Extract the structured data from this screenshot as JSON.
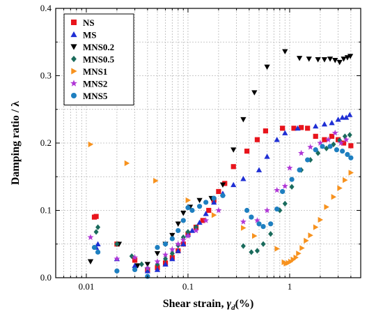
{
  "chart_data": {
    "type": "scatter",
    "xlabel": "Shear strain, γd (%)",
    "xlabel_main": "Shear strain,",
    "xlabel_sym": "γ",
    "xlabel_sub": "d",
    "xlabel_unit": "(%)",
    "ylabel": "Damping ratio / λ",
    "x_scale": "log",
    "xlim": [
      0.005,
      5
    ],
    "ylim": [
      0,
      0.4
    ],
    "x_ticks": [
      0.01,
      0.1,
      1
    ],
    "x_tick_labels": [
      "0.01",
      "0.1",
      "1"
    ],
    "y_ticks": [
      0,
      0.1,
      0.2,
      0.3,
      0.4
    ],
    "y_tick_labels": [
      "0.0",
      "0.1",
      "0.2",
      "0.3",
      "0.4"
    ],
    "grid": true,
    "legend_position": "top-left",
    "series": [
      {
        "name": "NS",
        "color": "#e8141c",
        "marker": "square",
        "points": [
          [
            0.012,
            0.09
          ],
          [
            0.0125,
            0.091
          ],
          [
            0.02,
            0.05
          ],
          [
            0.03,
            0.026
          ],
          [
            0.04,
            0.012
          ],
          [
            0.05,
            0.015
          ],
          [
            0.06,
            0.022
          ],
          [
            0.07,
            0.03
          ],
          [
            0.08,
            0.04
          ],
          [
            0.09,
            0.05
          ],
          [
            0.1,
            0.065
          ],
          [
            0.12,
            0.075
          ],
          [
            0.14,
            0.085
          ],
          [
            0.16,
            0.1
          ],
          [
            0.18,
            0.115
          ],
          [
            0.2,
            0.128
          ],
          [
            0.23,
            0.14
          ],
          [
            0.28,
            0.165
          ],
          [
            0.38,
            0.188
          ],
          [
            0.48,
            0.205
          ],
          [
            0.58,
            0.218
          ],
          [
            0.85,
            0.222
          ],
          [
            1.1,
            0.222
          ],
          [
            1.3,
            0.223
          ],
          [
            1.5,
            0.222
          ],
          [
            1.8,
            0.21
          ],
          [
            2.2,
            0.205
          ],
          [
            2.6,
            0.21
          ],
          [
            3.0,
            0.205
          ],
          [
            3.4,
            0.2
          ],
          [
            4.0,
            0.196
          ]
        ]
      },
      {
        "name": "MS",
        "color": "#1f2fd4",
        "marker": "triangle",
        "points": [
          [
            0.0125,
            0.045
          ],
          [
            0.013,
            0.05
          ],
          [
            0.02,
            0.028
          ],
          [
            0.03,
            0.018
          ],
          [
            0.04,
            0.01
          ],
          [
            0.05,
            0.012
          ],
          [
            0.06,
            0.02
          ],
          [
            0.07,
            0.028
          ],
          [
            0.08,
            0.04
          ],
          [
            0.09,
            0.05
          ],
          [
            0.1,
            0.064
          ],
          [
            0.11,
            0.07
          ],
          [
            0.13,
            0.082
          ],
          [
            0.15,
            0.095
          ],
          [
            0.18,
            0.112
          ],
          [
            0.22,
            0.125
          ],
          [
            0.28,
            0.138
          ],
          [
            0.35,
            0.147
          ],
          [
            0.5,
            0.16
          ],
          [
            0.6,
            0.18
          ],
          [
            0.75,
            0.205
          ],
          [
            0.9,
            0.215
          ],
          [
            1.2,
            0.222
          ],
          [
            1.8,
            0.225
          ],
          [
            2.2,
            0.228
          ],
          [
            2.6,
            0.23
          ],
          [
            3.0,
            0.235
          ],
          [
            3.3,
            0.238
          ],
          [
            3.6,
            0.238
          ],
          [
            3.9,
            0.242
          ]
        ]
      },
      {
        "name": "MNS0.2",
        "color": "#000000",
        "marker": "triangle-down",
        "points": [
          [
            0.011,
            0.024
          ],
          [
            0.021,
            0.05
          ],
          [
            0.032,
            0.018
          ],
          [
            0.04,
            0.02
          ],
          [
            0.05,
            0.036
          ],
          [
            0.06,
            0.05
          ],
          [
            0.07,
            0.063
          ],
          [
            0.08,
            0.08
          ],
          [
            0.09,
            0.096
          ],
          [
            0.105,
            0.105
          ],
          [
            0.13,
            0.115
          ],
          [
            0.17,
            0.118
          ],
          [
            0.22,
            0.138
          ],
          [
            0.28,
            0.19
          ],
          [
            0.35,
            0.235
          ],
          [
            0.45,
            0.275
          ],
          [
            0.6,
            0.313
          ],
          [
            0.9,
            0.336
          ],
          [
            1.25,
            0.326
          ],
          [
            1.55,
            0.325
          ],
          [
            1.9,
            0.324
          ],
          [
            2.2,
            0.324
          ],
          [
            2.5,
            0.325
          ],
          [
            2.8,
            0.323
          ],
          [
            3.1,
            0.32
          ],
          [
            3.4,
            0.325
          ],
          [
            3.7,
            0.327
          ],
          [
            3.95,
            0.329
          ]
        ]
      },
      {
        "name": "MNS0.5",
        "color": "#1a6b5c",
        "marker": "diamond",
        "points": [
          [
            0.0125,
            0.068
          ],
          [
            0.013,
            0.075
          ],
          [
            0.02,
            0.05
          ],
          [
            0.028,
            0.032
          ],
          [
            0.035,
            0.02
          ],
          [
            0.04,
            0.014
          ],
          [
            0.05,
            0.02
          ],
          [
            0.06,
            0.028
          ],
          [
            0.07,
            0.036
          ],
          [
            0.08,
            0.048
          ],
          [
            0.09,
            0.06
          ],
          [
            0.1,
            0.068
          ],
          [
            0.12,
            0.075
          ],
          [
            0.35,
            0.047
          ],
          [
            0.42,
            0.038
          ],
          [
            0.48,
            0.04
          ],
          [
            0.55,
            0.05
          ],
          [
            0.65,
            0.065
          ],
          [
            0.8,
            0.1
          ],
          [
            0.9,
            0.11
          ],
          [
            1.05,
            0.135
          ],
          [
            1.3,
            0.16
          ],
          [
            1.6,
            0.175
          ],
          [
            1.9,
            0.185
          ],
          [
            2.3,
            0.192
          ],
          [
            2.7,
            0.198
          ],
          [
            3.1,
            0.204
          ],
          [
            3.5,
            0.21
          ],
          [
            3.9,
            0.212
          ]
        ]
      },
      {
        "name": "MNS1",
        "color": "#f7921e",
        "marker": "triangle-right",
        "points": [
          [
            0.011,
            0.198
          ],
          [
            0.025,
            0.17
          ],
          [
            0.048,
            0.144
          ],
          [
            0.1,
            0.115
          ],
          [
            0.18,
            0.093
          ],
          [
            0.35,
            0.074
          ],
          [
            0.45,
            0.062
          ],
          [
            0.75,
            0.043
          ],
          [
            0.88,
            0.023
          ],
          [
            0.92,
            0.021
          ],
          [
            0.97,
            0.022
          ],
          [
            1.02,
            0.024
          ],
          [
            1.08,
            0.027
          ],
          [
            1.15,
            0.03
          ],
          [
            1.22,
            0.036
          ],
          [
            1.32,
            0.044
          ],
          [
            1.45,
            0.055
          ],
          [
            1.6,
            0.063
          ],
          [
            1.8,
            0.075
          ],
          [
            2.0,
            0.086
          ],
          [
            2.3,
            0.105
          ],
          [
            2.7,
            0.12
          ],
          [
            3.1,
            0.133
          ],
          [
            3.5,
            0.145
          ],
          [
            4.0,
            0.156
          ]
        ]
      },
      {
        "name": "MNS2",
        "color": "#b036d6",
        "marker": "star",
        "points": [
          [
            0.011,
            0.06
          ],
          [
            0.02,
            0.028
          ],
          [
            0.03,
            0.03
          ],
          [
            0.04,
            0.014
          ],
          [
            0.05,
            0.024
          ],
          [
            0.06,
            0.034
          ],
          [
            0.07,
            0.042
          ],
          [
            0.08,
            0.05
          ],
          [
            0.09,
            0.056
          ],
          [
            0.1,
            0.062
          ],
          [
            0.12,
            0.07
          ],
          [
            0.15,
            0.085
          ],
          [
            0.2,
            0.1
          ],
          [
            0.35,
            0.083
          ],
          [
            0.48,
            0.085
          ],
          [
            0.6,
            0.1
          ],
          [
            0.75,
            0.13
          ],
          [
            0.9,
            0.136
          ],
          [
            1.0,
            0.163
          ],
          [
            1.3,
            0.185
          ],
          [
            1.6,
            0.194
          ],
          [
            2.0,
            0.2
          ],
          [
            2.4,
            0.205
          ],
          [
            2.8,
            0.215
          ],
          [
            3.2,
            0.2
          ],
          [
            3.6,
            0.205
          ]
        ]
      },
      {
        "name": "MNS5",
        "color": "#1e7fc0",
        "marker": "circle",
        "points": [
          [
            0.012,
            0.045
          ],
          [
            0.013,
            0.038
          ],
          [
            0.02,
            0.01
          ],
          [
            0.03,
            0.012
          ],
          [
            0.04,
            0.002
          ],
          [
            0.05,
            0.045
          ],
          [
            0.06,
            0.05
          ],
          [
            0.07,
            0.058
          ],
          [
            0.08,
            0.07
          ],
          [
            0.09,
            0.085
          ],
          [
            0.1,
            0.104
          ],
          [
            0.11,
            0.1
          ],
          [
            0.13,
            0.106
          ],
          [
            0.15,
            0.112
          ],
          [
            0.18,
            0.118
          ],
          [
            0.22,
            0.122
          ],
          [
            0.38,
            0.1
          ],
          [
            0.42,
            0.09
          ],
          [
            0.5,
            0.08
          ],
          [
            0.55,
            0.076
          ],
          [
            0.65,
            0.08
          ],
          [
            0.75,
            0.102
          ],
          [
            0.85,
            0.128
          ],
          [
            1.05,
            0.146
          ],
          [
            1.25,
            0.16
          ],
          [
            1.5,
            0.175
          ],
          [
            1.8,
            0.19
          ],
          [
            2.1,
            0.195
          ],
          [
            2.5,
            0.195
          ],
          [
            2.9,
            0.19
          ],
          [
            3.3,
            0.188
          ],
          [
            3.7,
            0.183
          ],
          [
            4.0,
            0.178
          ]
        ]
      }
    ]
  }
}
